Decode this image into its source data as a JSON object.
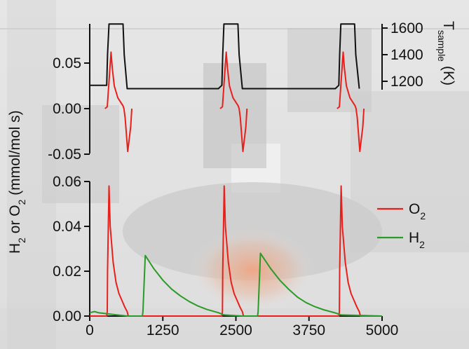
{
  "chart_data": [
    {
      "type": "line",
      "panel": "top",
      "title": "",
      "xlabel": "",
      "ylabel_left": "",
      "ylabel_right_main": "T",
      "ylabel_right_sub": "sample",
      "ylabel_right_unit": "(K)",
      "ylim_left": [
        -0.05,
        0.08
      ],
      "ylim_right": [
        1100,
        1650
      ],
      "y_ticks_left": [
        "0.05",
        "0.00",
        "-0.05"
      ],
      "y_ticks_right": [
        "1600",
        "1400",
        "1200"
      ],
      "series": [
        {
          "axis": "right",
          "color": "#111111",
          "x": [
            0,
            290,
            305,
            330,
            570,
            590,
            640,
            2200,
            2260,
            2275,
            2295,
            2535,
            2555,
            2610,
            4200,
            4260,
            4275,
            4295,
            4530,
            4550,
            4610
          ],
          "y": [
            1170,
            1170,
            1400,
            1630,
            1630,
            1400,
            1145,
            1145,
            1170,
            1400,
            1630,
            1630,
            1400,
            1145,
            1145,
            1170,
            1400,
            1630,
            1630,
            1400,
            1145
          ]
        },
        {
          "axis": "left",
          "color": "#e8201c",
          "segments": [
            {
              "x": [
                260,
                300,
                340,
                365,
                385,
                420,
                480,
                540,
                570,
                585,
                605,
                650,
                700,
                720
              ],
              "y": [
                0.0,
                0.002,
                0.04,
                0.062,
                0.045,
                0.025,
                0.012,
                0.006,
                0.003,
                0.0,
                -0.01,
                -0.047,
                -0.02,
                0.0
              ]
            },
            {
              "x": [
                2230,
                2270,
                2310,
                2335,
                2355,
                2390,
                2450,
                2510,
                2540,
                2555,
                2575,
                2620,
                2670,
                2690
              ],
              "y": [
                0.0,
                0.002,
                0.04,
                0.062,
                0.045,
                0.025,
                0.012,
                0.006,
                0.003,
                0.0,
                -0.01,
                -0.047,
                -0.02,
                0.0
              ]
            },
            {
              "x": [
                4230,
                4270,
                4310,
                4335,
                4355,
                4390,
                4450,
                4510,
                4540,
                4555,
                4575,
                4620,
                4670,
                4690
              ],
              "y": [
                0.0,
                0.002,
                0.04,
                0.062,
                0.045,
                0.025,
                0.012,
                0.006,
                0.003,
                0.0,
                -0.01,
                -0.047,
                -0.02,
                0.0
              ]
            }
          ]
        }
      ]
    },
    {
      "type": "line",
      "panel": "bottom",
      "title": "",
      "xlabel": "",
      "ylabel": "",
      "xlim": [
        0,
        5000
      ],
      "ylim": [
        0,
        0.06
      ],
      "x_ticks": [
        "0",
        "1250",
        "2500",
        "3750",
        "5000"
      ],
      "y_ticks": [
        "0.00",
        "0.02",
        "0.04",
        "0.06"
      ],
      "legend_placement": "right",
      "series": [
        {
          "name_main": "O",
          "name_sub": "2",
          "color": "#e8201c",
          "x": [
            0,
            290,
            300,
            305,
            330,
            350,
            400,
            450,
            500,
            550,
            600,
            640,
            660,
            2260,
            2270,
            2275,
            2300,
            2320,
            2370,
            2420,
            2470,
            2520,
            2570,
            2610,
            2630,
            4260,
            4270,
            4275,
            4300,
            4320,
            4370,
            4420,
            4470,
            4520,
            4570,
            4610,
            4630,
            5000
          ],
          "y": [
            0,
            0,
            0.002,
            0.02,
            0.058,
            0.04,
            0.024,
            0.015,
            0.01,
            0.007,
            0.004,
            0.002,
            0,
            0,
            0.002,
            0.02,
            0.058,
            0.04,
            0.024,
            0.015,
            0.01,
            0.007,
            0.004,
            0.002,
            0,
            0,
            0.002,
            0.02,
            0.058,
            0.04,
            0.024,
            0.015,
            0.01,
            0.007,
            0.004,
            0.002,
            0,
            0
          ]
        },
        {
          "name_main": "H",
          "name_sub": "2",
          "color": "#2a9a28",
          "x": [
            0,
            80,
            150,
            300,
            640,
            900,
            910,
            950,
            1000,
            1100,
            1250,
            1400,
            1550,
            1700,
            1850,
            2000,
            2200,
            2300,
            2600,
            2870,
            2880,
            2920,
            2970,
            3100,
            3250,
            3400,
            3550,
            3700,
            3850,
            4000,
            4200,
            4300,
            5000
          ],
          "y": [
            0.0015,
            0.002,
            0.0015,
            0.001,
            0,
            0,
            0.002,
            0.027,
            0.025,
            0.021,
            0.016,
            0.012,
            0.009,
            0.0065,
            0.0045,
            0.003,
            0.0015,
            0.0005,
            0,
            0,
            0.002,
            0.028,
            0.026,
            0.021,
            0.016,
            0.012,
            0.0085,
            0.006,
            0.0042,
            0.0028,
            0.0014,
            0.0005,
            0
          ]
        }
      ]
    }
  ],
  "shared_ylabel": {
    "h_main": "H",
    "h_sub": "2",
    "or_o_main": " or O",
    "o_sub": "2",
    "units": " (mmol/mol s)"
  }
}
